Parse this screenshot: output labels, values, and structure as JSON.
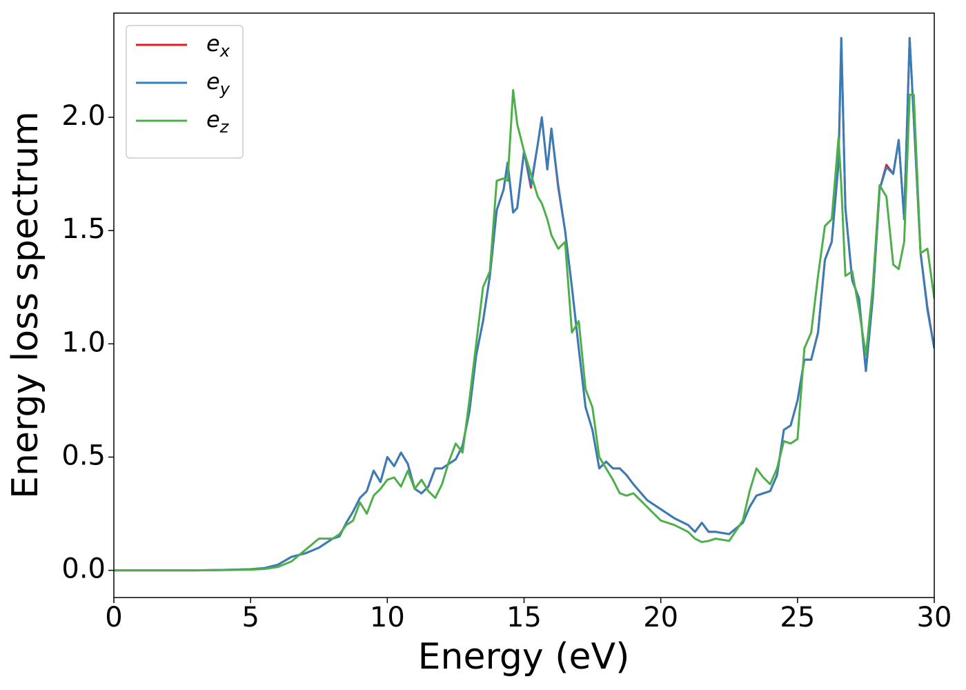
{
  "chart_data": {
    "type": "line",
    "xlabel": "Energy (eV)",
    "ylabel": "Energy loss spectrum",
    "x": [
      0,
      1,
      2,
      3,
      4,
      5,
      5.5,
      6,
      6.5,
      7,
      7.5,
      8,
      8.25,
      8.5,
      8.75,
      9,
      9.25,
      9.5,
      9.75,
      10,
      10.25,
      10.5,
      10.75,
      11,
      11.25,
      11.5,
      11.75,
      12,
      12.25,
      12.5,
      12.75,
      13,
      13.25,
      13.5,
      13.75,
      14,
      14.25,
      14.4,
      14.6,
      14.75,
      15,
      15.25,
      15.5,
      15.65,
      15.85,
      16,
      16.25,
      16.5,
      16.75,
      17,
      17.25,
      17.5,
      17.75,
      18,
      18.25,
      18.5,
      18.75,
      19,
      19.5,
      20,
      20.5,
      21,
      21.25,
      21.5,
      21.75,
      22,
      22.5,
      23,
      23.25,
      23.5,
      23.75,
      24,
      24.25,
      24.5,
      24.75,
      25,
      25.25,
      25.5,
      25.75,
      26,
      26.25,
      26.5,
      26.6,
      26.75,
      27,
      27.25,
      27.5,
      27.75,
      28,
      28.25,
      28.5,
      28.7,
      28.9,
      29.1,
      29.25,
      29.5,
      29.75,
      30
    ],
    "series": [
      {
        "name": "e_x",
        "color": "#e41a1c",
        "values": [
          0,
          0,
          0,
          0,
          0.002,
          0.005,
          0.01,
          0.025,
          0.06,
          0.075,
          0.1,
          0.14,
          0.15,
          0.21,
          0.26,
          0.32,
          0.35,
          0.44,
          0.39,
          0.5,
          0.46,
          0.52,
          0.47,
          0.36,
          0.34,
          0.37,
          0.45,
          0.45,
          0.47,
          0.49,
          0.55,
          0.7,
          0.95,
          1.1,
          1.3,
          1.59,
          1.68,
          1.8,
          1.58,
          1.6,
          1.85,
          1.69,
          1.88,
          2.0,
          1.77,
          1.95,
          1.69,
          1.5,
          1.25,
          0.98,
          0.72,
          0.62,
          0.45,
          0.48,
          0.45,
          0.45,
          0.42,
          0.38,
          0.31,
          0.27,
          0.23,
          0.2,
          0.17,
          0.21,
          0.17,
          0.17,
          0.16,
          0.21,
          0.28,
          0.33,
          0.34,
          0.35,
          0.42,
          0.62,
          0.64,
          0.75,
          0.93,
          0.93,
          1.05,
          1.37,
          1.45,
          1.8,
          2.35,
          1.6,
          1.28,
          1.2,
          0.88,
          1.2,
          1.68,
          1.79,
          1.75,
          1.9,
          1.55,
          2.35,
          2.0,
          1.4,
          1.16,
          0.98
        ]
      },
      {
        "name": "e_y",
        "color": "#377eb8",
        "values": [
          0,
          0,
          0,
          0,
          0.002,
          0.005,
          0.01,
          0.025,
          0.06,
          0.075,
          0.1,
          0.14,
          0.15,
          0.21,
          0.26,
          0.32,
          0.35,
          0.44,
          0.39,
          0.5,
          0.46,
          0.52,
          0.47,
          0.36,
          0.34,
          0.37,
          0.45,
          0.45,
          0.47,
          0.49,
          0.55,
          0.7,
          0.95,
          1.1,
          1.3,
          1.59,
          1.68,
          1.8,
          1.58,
          1.6,
          1.85,
          1.7,
          1.88,
          2.0,
          1.77,
          1.95,
          1.7,
          1.5,
          1.25,
          0.98,
          0.72,
          0.62,
          0.45,
          0.48,
          0.45,
          0.45,
          0.42,
          0.38,
          0.31,
          0.27,
          0.23,
          0.2,
          0.17,
          0.21,
          0.17,
          0.17,
          0.16,
          0.21,
          0.28,
          0.33,
          0.34,
          0.35,
          0.42,
          0.62,
          0.64,
          0.75,
          0.93,
          0.93,
          1.05,
          1.37,
          1.45,
          1.8,
          2.35,
          1.6,
          1.28,
          1.2,
          0.88,
          1.2,
          1.68,
          1.78,
          1.75,
          1.9,
          1.55,
          2.35,
          2.0,
          1.4,
          1.15,
          0.98
        ]
      },
      {
        "name": "e_z",
        "color": "#4daf4a",
        "values": [
          0,
          0,
          0,
          0,
          0.001,
          0.003,
          0.006,
          0.015,
          0.04,
          0.09,
          0.14,
          0.14,
          0.16,
          0.2,
          0.22,
          0.3,
          0.25,
          0.33,
          0.36,
          0.4,
          0.41,
          0.37,
          0.44,
          0.36,
          0.4,
          0.35,
          0.32,
          0.38,
          0.48,
          0.56,
          0.52,
          0.75,
          1.0,
          1.25,
          1.32,
          1.72,
          1.73,
          1.72,
          2.12,
          1.97,
          1.85,
          1.75,
          1.65,
          1.62,
          1.55,
          1.48,
          1.42,
          1.45,
          1.05,
          1.1,
          0.8,
          0.72,
          0.5,
          0.45,
          0.4,
          0.34,
          0.33,
          0.34,
          0.28,
          0.22,
          0.2,
          0.17,
          0.14,
          0.125,
          0.13,
          0.14,
          0.13,
          0.22,
          0.35,
          0.45,
          0.41,
          0.38,
          0.45,
          0.57,
          0.56,
          0.58,
          0.98,
          1.05,
          1.3,
          1.52,
          1.55,
          1.91,
          1.7,
          1.3,
          1.32,
          1.15,
          0.95,
          1.25,
          1.7,
          1.65,
          1.35,
          1.33,
          1.45,
          2.1,
          2.1,
          1.4,
          1.42,
          1.2
        ]
      }
    ],
    "xlim": [
      0,
      30
    ],
    "ylim": [
      -0.12,
      2.46
    ],
    "xticks": [
      0,
      5,
      10,
      15,
      20,
      25,
      30
    ],
    "yticks": [
      {
        "value": 0,
        "label": "0.0"
      },
      0.5,
      {
        "value": 1,
        "label": "1.0"
      },
      1.5,
      {
        "value": 2,
        "label": "2.0"
      }
    ],
    "grid": false,
    "legend": "upper left"
  }
}
